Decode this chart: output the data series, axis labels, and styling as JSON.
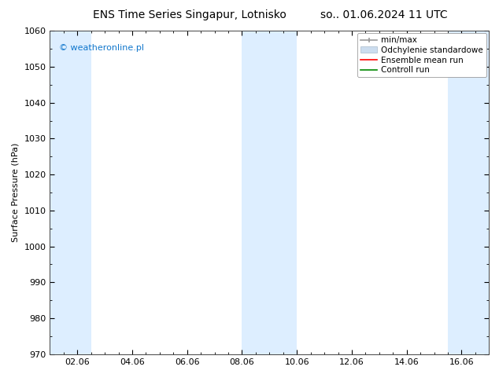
{
  "title_left": "ENS Time Series Singapur, Lotnisko",
  "title_right": "so.. 01.06.2024 11 UTC",
  "ylabel": "Surface Pressure (hPa)",
  "ylim": [
    970,
    1060
  ],
  "yticks": [
    970,
    980,
    990,
    1000,
    1010,
    1020,
    1030,
    1040,
    1050,
    1060
  ],
  "xlim": [
    0,
    16
  ],
  "xtick_labels": [
    "02.06",
    "04.06",
    "06.06",
    "08.06",
    "10.06",
    "12.06",
    "14.06",
    "16.06"
  ],
  "xtick_positions": [
    1,
    3,
    5,
    7,
    9,
    11,
    13,
    15
  ],
  "shaded_bands": [
    {
      "x_start": 0,
      "x_end": 1.5
    },
    {
      "x_start": 7,
      "x_end": 9
    },
    {
      "x_start": 14.5,
      "x_end": 16
    }
  ],
  "shade_color": "#ddeeff",
  "background_color": "#ffffff",
  "watermark": "© weatheronline.pl",
  "watermark_color": "#1177cc",
  "legend_labels": [
    "min/max",
    "Odchylenie standardowe",
    "Ensemble mean run",
    "Controll run"
  ],
  "legend_colors": [
    "#aaaaaa",
    "#ccddef",
    "#ff0000",
    "#008800"
  ],
  "title_fontsize": 10,
  "tick_fontsize": 8,
  "ylabel_fontsize": 8,
  "legend_fontsize": 7.5,
  "watermark_fontsize": 8
}
